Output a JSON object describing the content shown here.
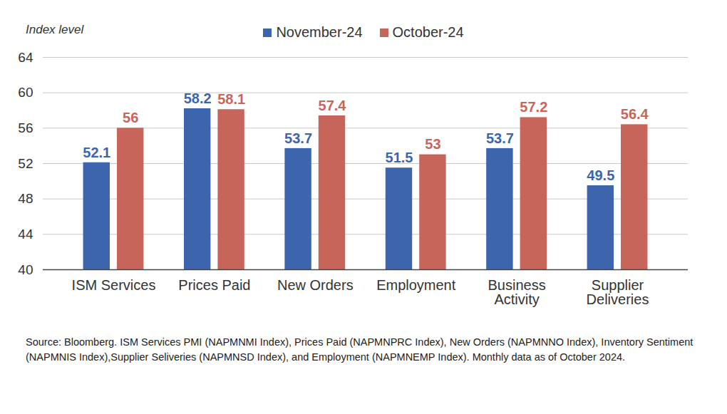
{
  "chart_data": {
    "type": "bar",
    "ylabel": "Index level",
    "caption": "Source: Bloomberg. ISM Services PMI (NAPMNMI Index), Prices Paid (NAPMNPRC Index), New Orders (NAPMNNO Index), Inventory Sentiment (NAPMNIS Index),Supplier Seliveries (NAPMNSD Index), and Employment (NAPMNEMP Index).   Monthly data as of October 2024.",
    "categories": [
      "ISM Services",
      "Prices Paid",
      "New Orders",
      "Employment",
      "Business Activity",
      "Supplier Deliveries"
    ],
    "series": [
      {
        "name": "November-24",
        "color": "#3d65ad",
        "values": [
          52.1,
          58.2,
          53.7,
          51.5,
          53.7,
          49.5
        ]
      },
      {
        "name": "October-24",
        "color": "#c8655b",
        "values": [
          56,
          58.1,
          57.4,
          53,
          57.2,
          56.4
        ]
      }
    ],
    "ylim": [
      40,
      64
    ],
    "yticks": [
      40,
      44,
      48,
      52,
      56,
      60,
      64
    ],
    "grid": true,
    "legend": "top",
    "data_labels": true
  }
}
